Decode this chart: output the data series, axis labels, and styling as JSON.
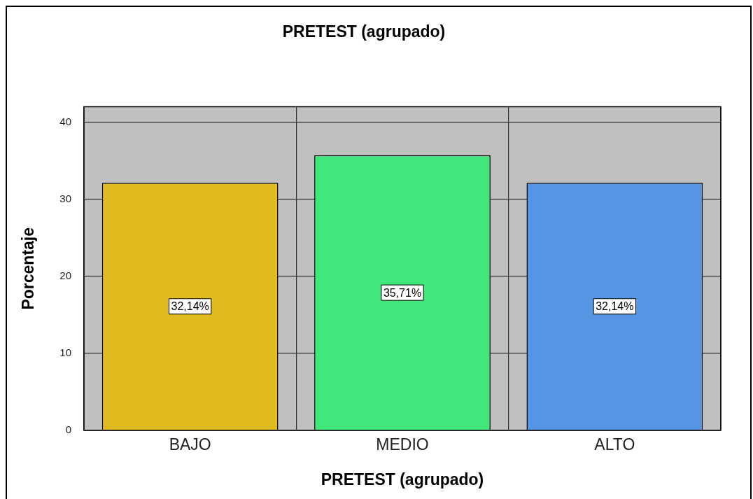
{
  "chart_data": {
    "type": "bar",
    "title": "PRETEST (agrupado)",
    "xlabel": "PRETEST (agrupado)",
    "ylabel": "Porcentaje",
    "categories": [
      "BAJO",
      "MEDIO",
      "ALTO"
    ],
    "values": [
      32.14,
      35.71,
      32.14
    ],
    "colors": [
      "#e0bb1f",
      "#40e87c",
      "#5595e3"
    ],
    "value_labels": [
      "32,14%",
      "35,71%",
      "32,14%"
    ],
    "ylim": [
      0,
      42
    ],
    "yticks": [
      0,
      10,
      20,
      30,
      40
    ],
    "grid": true
  }
}
